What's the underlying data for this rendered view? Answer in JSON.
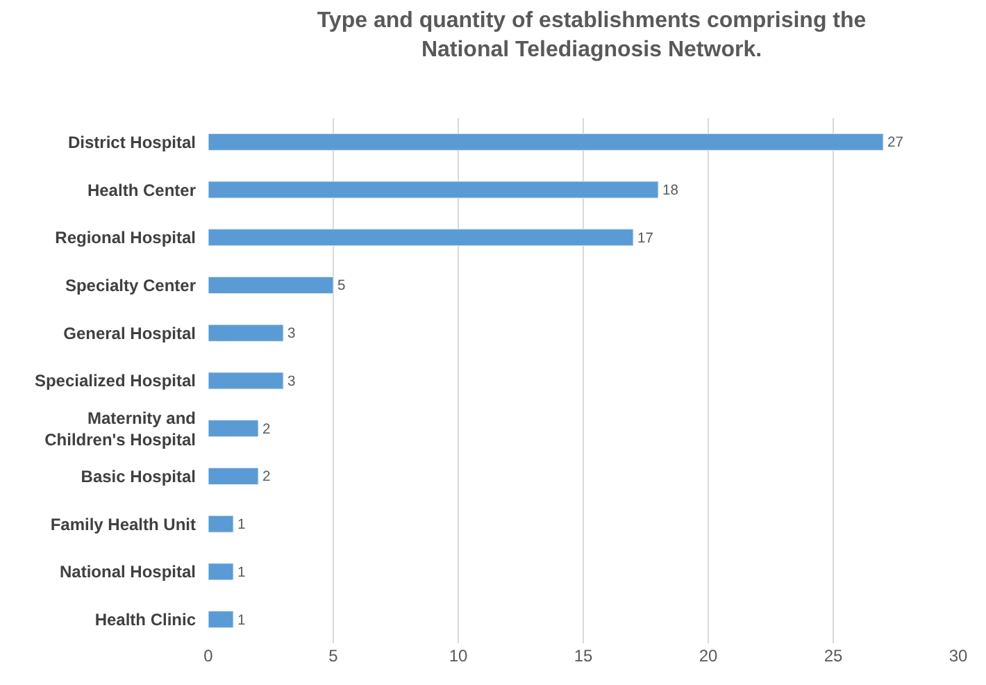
{
  "chart_data": {
    "type": "bar",
    "orientation": "horizontal",
    "title": "Type and quantity of establishments comprising the\nNational Telediagnosis Network.",
    "categories": [
      "District Hospital",
      "Health Center",
      "Regional Hospital",
      "Specialty Center",
      "General Hospital",
      "Specialized Hospital",
      "Maternity and\nChildren's Hospital",
      "Basic Hospital",
      "Family Health Unit",
      "National Hospital",
      "Health Clinic"
    ],
    "values": [
      27,
      18,
      17,
      5,
      3,
      3,
      2,
      2,
      1,
      1,
      1
    ],
    "color": "#5b9bd5",
    "xlim": [
      0,
      30
    ],
    "xticks": [
      0,
      5,
      10,
      15,
      20,
      25,
      30
    ],
    "grid": "x",
    "data_labels": true,
    "legend": false
  }
}
